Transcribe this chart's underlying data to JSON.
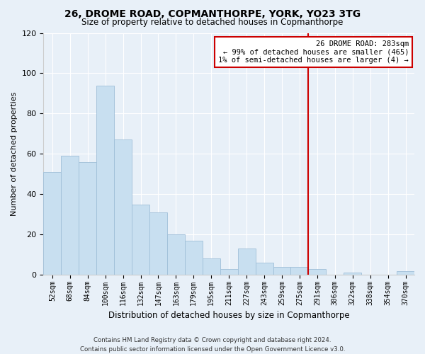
{
  "title": "26, DROME ROAD, COPMANTHORPE, YORK, YO23 3TG",
  "subtitle": "Size of property relative to detached houses in Copmanthorpe",
  "xlabel": "Distribution of detached houses by size in Copmanthorpe",
  "ylabel": "Number of detached properties",
  "bar_color": "#c8dff0",
  "bar_edge_color": "#a0bfd8",
  "categories": [
    "52sqm",
    "68sqm",
    "84sqm",
    "100sqm",
    "116sqm",
    "132sqm",
    "147sqm",
    "163sqm",
    "179sqm",
    "195sqm",
    "211sqm",
    "227sqm",
    "243sqm",
    "259sqm",
    "275sqm",
    "291sqm",
    "306sqm",
    "322sqm",
    "338sqm",
    "354sqm",
    "370sqm"
  ],
  "values": [
    51,
    59,
    56,
    94,
    67,
    35,
    31,
    20,
    17,
    8,
    3,
    13,
    6,
    4,
    4,
    3,
    0,
    1,
    0,
    0,
    2
  ],
  "vline_index": 15,
  "vline_color": "#cc0000",
  "ylim": [
    0,
    120
  ],
  "yticks": [
    0,
    20,
    40,
    60,
    80,
    100,
    120
  ],
  "legend_title": "26 DROME ROAD: 283sqm",
  "legend_line1": "← 99% of detached houses are smaller (465)",
  "legend_line2": "1% of semi-detached houses are larger (4) →",
  "footer1": "Contains HM Land Registry data © Crown copyright and database right 2024.",
  "footer2": "Contains public sector information licensed under the Open Government Licence v3.0.",
  "background_color": "#e8f0f8",
  "grid_color": "#ffffff",
  "title_fontsize": 10,
  "subtitle_fontsize": 8.5
}
